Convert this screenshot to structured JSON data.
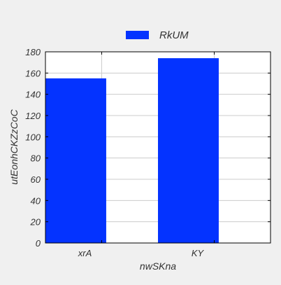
{
  "chart_data": {
    "type": "bar",
    "categories": [
      "xrA",
      "KY"
    ],
    "series": [
      {
        "name": "RkUM",
        "values": [
          155,
          174
        ]
      }
    ],
    "xlabel": "nwSKna",
    "ylabel": "utEonhCKZzCoC",
    "ylim": [
      0,
      180
    ],
    "yticks": [
      0,
      20,
      40,
      60,
      80,
      100,
      120,
      140,
      160,
      180
    ],
    "grid": true,
    "legend_position": "top-center",
    "colors": {
      "bar": "#0433ff",
      "background": "#f0f0f0",
      "plot_background": "#ffffff",
      "grid": "#cccccc",
      "axis": "#000000"
    }
  }
}
